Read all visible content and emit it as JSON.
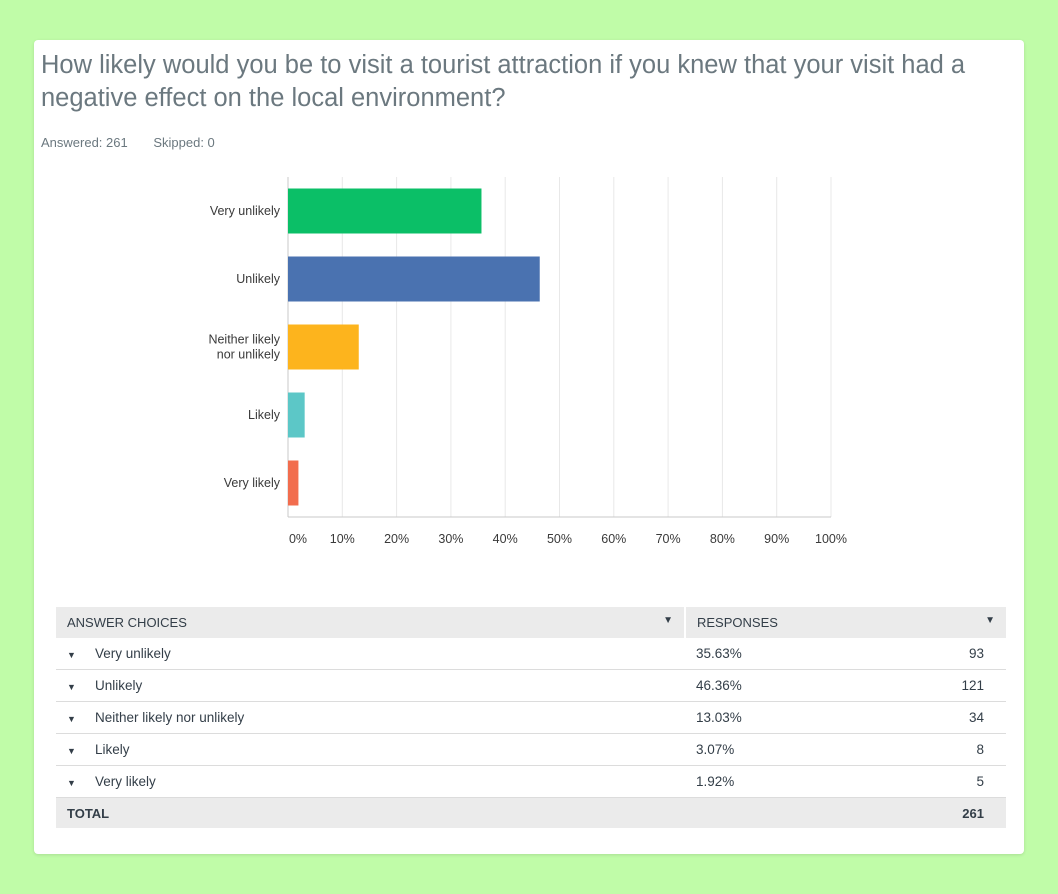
{
  "question": {
    "title": "How likely would you be to visit a tourist attraction if you knew that your visit had a negative effect on the local environment?",
    "answered_label": "Answered: 261",
    "skipped_label": "Skipped: 0"
  },
  "chart_data": {
    "type": "bar",
    "orientation": "horizontal",
    "categories": [
      "Very unlikely",
      "Unlikely",
      "Neither likely nor unlikely",
      "Likely",
      "Very likely"
    ],
    "category_display_lines": [
      [
        "Very unlikely"
      ],
      [
        "Unlikely"
      ],
      [
        "Neither likely",
        "nor unlikely"
      ],
      [
        "Likely"
      ],
      [
        "Very likely"
      ]
    ],
    "values": [
      35.63,
      46.36,
      13.03,
      3.07,
      1.92
    ],
    "colors": [
      "#0bbf67",
      "#4a72b0",
      "#fdb41d",
      "#5cc7c7",
      "#f26d4e"
    ],
    "xlim": [
      0,
      100
    ],
    "x_ticks": [
      "0%",
      "10%",
      "20%",
      "30%",
      "40%",
      "50%",
      "60%",
      "70%",
      "80%",
      "90%",
      "100%"
    ],
    "grid": true,
    "title": "",
    "xlabel": "",
    "ylabel": ""
  },
  "table": {
    "header": {
      "answer_choices": "ANSWER CHOICES",
      "responses": "RESPONSES"
    },
    "rows": [
      {
        "label": "Very unlikely",
        "percent": "35.63%",
        "count": "93"
      },
      {
        "label": "Unlikely",
        "percent": "46.36%",
        "count": "121"
      },
      {
        "label": "Neither likely nor unlikely",
        "percent": "13.03%",
        "count": "34"
      },
      {
        "label": "Likely",
        "percent": "3.07%",
        "count": "8"
      },
      {
        "label": "Very likely",
        "percent": "1.92%",
        "count": "5"
      }
    ],
    "total": {
      "label": "TOTAL",
      "count": "261"
    }
  },
  "icons": {
    "header_sort": "caret-down-icon",
    "row_expand": "caret-down-icon"
  }
}
